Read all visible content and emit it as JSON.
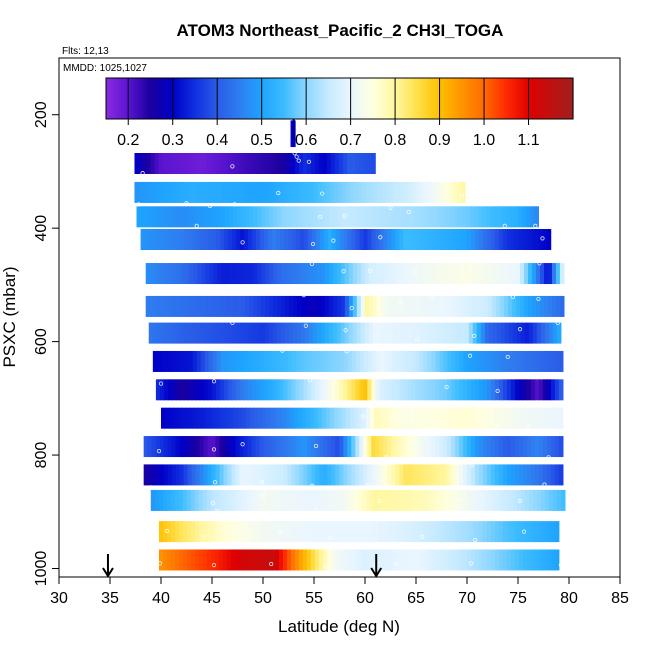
{
  "chart_data": {
    "type": "heatmap",
    "title": "ATOM3 Northeast_Pacific_2 CH3I_TOGA",
    "flights_label": "Flts: 12,13",
    "dates_label": "MMDD: 1025,1027",
    "xlabel": "Latitude (deg N)",
    "ylabel": "PSXC (mbar)",
    "xlim": [
      30,
      85
    ],
    "ylim": [
      1000,
      100
    ],
    "y_reversed": true,
    "x_ticks": [
      "30",
      "35",
      "40",
      "45",
      "50",
      "55",
      "60",
      "65",
      "70",
      "75",
      "80",
      "85"
    ],
    "y_ticks": [
      "200",
      "400",
      "600",
      "800",
      "1000"
    ],
    "colorbar": {
      "min": 0.15,
      "max": 1.2,
      "tick_labels": [
        "0.2",
        "0.3",
        "0.4",
        "0.5",
        "0.6",
        "0.7",
        "0.8",
        "0.9",
        "1.0",
        "1.1"
      ],
      "colors": [
        "#8a2be2",
        "#5a14d0",
        "#1a00a0",
        "#0000c8",
        "#1030e0",
        "#2a5ce8",
        "#2f7df0",
        "#1ea4ff",
        "#3cbcff",
        "#8dd6ff",
        "#c6eaff",
        "#eaf6ff",
        "#ffffe0",
        "#fff7a0",
        "#ffe04a",
        "#ffc000",
        "#ff9400",
        "#ff6a00",
        "#ff2a00",
        "#e00000",
        "#c01010",
        "#a02020"
      ]
    },
    "markers": [
      {
        "name": "flight-start-arrow",
        "lat": 34.8,
        "p": 985
      },
      {
        "name": "flight-end-arrow",
        "lat": 61.1,
        "p": 985
      },
      {
        "name": "profile-top-arrow",
        "lat": 53.0,
        "p": 225
      }
    ],
    "rows": [
      {
        "p": 233,
        "values": [
          [
            52.7,
            53.2,
            0.3
          ]
        ]
      },
      {
        "p": 286,
        "values": [
          [
            37.4,
            0.3
          ],
          [
            40,
            0.2
          ],
          [
            44,
            0.18
          ],
          [
            48,
            0.22
          ],
          [
            52,
            0.25
          ],
          [
            54,
            0.35
          ],
          [
            56,
            0.3
          ],
          [
            58.5,
            0.4
          ],
          [
            61,
            0.38
          ]
        ]
      },
      {
        "p": 337,
        "values": [
          [
            37.4,
            0.48
          ],
          [
            43,
            0.52
          ],
          [
            50,
            0.5
          ],
          [
            55,
            0.55
          ],
          [
            60,
            0.62
          ],
          [
            64,
            0.66
          ],
          [
            67,
            0.72
          ],
          [
            69.8,
            0.8
          ]
        ]
      },
      {
        "p": 380,
        "values": [
          [
            37.6,
            0.5
          ],
          [
            42,
            0.47
          ],
          [
            46,
            0.5
          ],
          [
            52,
            0.6
          ],
          [
            58,
            0.65
          ],
          [
            65,
            0.62
          ],
          [
            70,
            0.58
          ],
          [
            75,
            0.52
          ],
          [
            77,
            0.46
          ]
        ]
      },
      {
        "p": 420,
        "values": [
          [
            38,
            0.48
          ],
          [
            42,
            0.45
          ],
          [
            45.5,
            0.4
          ],
          [
            48,
            0.32
          ],
          [
            51,
            0.45
          ],
          [
            54,
            0.38
          ],
          [
            56.5,
            0.52
          ],
          [
            60,
            0.36
          ],
          [
            64,
            0.55
          ],
          [
            70,
            0.5
          ],
          [
            74,
            0.35
          ],
          [
            78.2,
            0.3
          ]
        ]
      },
      {
        "p": 480,
        "values": [
          [
            38.5,
            0.47
          ],
          [
            42,
            0.43
          ],
          [
            46,
            0.33
          ],
          [
            49,
            0.34
          ],
          [
            52,
            0.43
          ],
          [
            56,
            0.48
          ],
          [
            60.5,
            0.67
          ],
          [
            66,
            0.72
          ],
          [
            70,
            0.74
          ],
          [
            75,
            0.7
          ],
          [
            78,
            0.3
          ],
          [
            79.5,
            0.72
          ]
        ]
      },
      {
        "p": 538,
        "values": [
          [
            38.5,
            0.45
          ],
          [
            44,
            0.42
          ],
          [
            48,
            0.4
          ],
          [
            52,
            0.33
          ],
          [
            55,
            0.28
          ],
          [
            58,
            0.36
          ],
          [
            60.2,
            0.8
          ],
          [
            62,
            0.72
          ],
          [
            68,
            0.7
          ],
          [
            72,
            0.66
          ],
          [
            76,
            0.5
          ],
          [
            79.5,
            0.42
          ]
        ]
      },
      {
        "p": 585,
        "values": [
          [
            38.8,
            0.44
          ],
          [
            43,
            0.4
          ],
          [
            47,
            0.38
          ],
          [
            50,
            0.36
          ],
          [
            54,
            0.44
          ],
          [
            58,
            0.58
          ],
          [
            61,
            0.7
          ],
          [
            66,
            0.68
          ],
          [
            70,
            0.65
          ],
          [
            72,
            0.42
          ],
          [
            76,
            0.33
          ],
          [
            79.2,
            0.52
          ]
        ]
      },
      {
        "p": 635,
        "values": [
          [
            39.2,
            0.3
          ],
          [
            43,
            0.32
          ],
          [
            46,
            0.48
          ],
          [
            50,
            0.52
          ],
          [
            54,
            0.57
          ],
          [
            58,
            0.6
          ],
          [
            61.5,
            0.7
          ],
          [
            65,
            0.65
          ],
          [
            70,
            0.5
          ],
          [
            74,
            0.45
          ],
          [
            79.4,
            0.4
          ]
        ]
      },
      {
        "p": 685,
        "values": [
          [
            39.5,
            0.35
          ],
          [
            42,
            0.25
          ],
          [
            45,
            0.32
          ],
          [
            48,
            0.45
          ],
          [
            51,
            0.52
          ],
          [
            54,
            0.62
          ],
          [
            57,
            0.75
          ],
          [
            60,
            0.9
          ],
          [
            61.3,
            0.68
          ],
          [
            65,
            0.62
          ],
          [
            68,
            0.58
          ],
          [
            72,
            0.48
          ],
          [
            75,
            0.3
          ],
          [
            77,
            0.2
          ],
          [
            79.4,
            0.42
          ]
        ]
      },
      {
        "p": 735,
        "values": [
          [
            40,
            0.3
          ],
          [
            44,
            0.33
          ],
          [
            48,
            0.38
          ],
          [
            52,
            0.46
          ],
          [
            56,
            0.57
          ],
          [
            60,
            0.68
          ],
          [
            61,
            0.78
          ],
          [
            64,
            0.74
          ],
          [
            70,
            0.76
          ],
          [
            75,
            0.72
          ],
          [
            79.4,
            0.7
          ]
        ]
      },
      {
        "p": 785,
        "values": [
          [
            38.3,
            0.4
          ],
          [
            42,
            0.3
          ],
          [
            45,
            0.2
          ],
          [
            47,
            0.3
          ],
          [
            50,
            0.4
          ],
          [
            54,
            0.48
          ],
          [
            57.5,
            0.38
          ],
          [
            60.8,
            0.86
          ],
          [
            64,
            0.76
          ],
          [
            68,
            0.66
          ],
          [
            71,
            0.48
          ],
          [
            74,
            0.4
          ],
          [
            77,
            0.46
          ],
          [
            79.4,
            0.38
          ]
        ]
      },
      {
        "p": 835,
        "values": [
          [
            38.3,
            0.25
          ],
          [
            42,
            0.35
          ],
          [
            45,
            0.52
          ],
          [
            48,
            0.7
          ],
          [
            52,
            0.66
          ],
          [
            56,
            0.52
          ],
          [
            60.8,
            0.7
          ],
          [
            64,
            0.84
          ],
          [
            68,
            0.8
          ],
          [
            71,
            0.62
          ],
          [
            74,
            0.5
          ],
          [
            77,
            0.44
          ],
          [
            79.4,
            0.36
          ]
        ]
      },
      {
        "p": 880,
        "values": [
          [
            39,
            0.48
          ],
          [
            42,
            0.55
          ],
          [
            45,
            0.64
          ],
          [
            50,
            0.72
          ],
          [
            55,
            0.7
          ],
          [
            58,
            0.72
          ],
          [
            61,
            0.8
          ],
          [
            66,
            0.78
          ],
          [
            70,
            0.72
          ],
          [
            75,
            0.64
          ],
          [
            79.6,
            0.55
          ]
        ]
      },
      {
        "p": 935,
        "values": [
          [
            39.8,
            0.9
          ],
          [
            42,
            0.84
          ],
          [
            46,
            0.76
          ],
          [
            50,
            0.72
          ],
          [
            55,
            0.7
          ],
          [
            60,
            0.7
          ],
          [
            64,
            0.68
          ],
          [
            70,
            0.62
          ],
          [
            74,
            0.56
          ],
          [
            79,
            0.5
          ]
        ]
      },
      {
        "p": 985,
        "values": [
          [
            39.8,
            0.95
          ],
          [
            42,
            1.0
          ],
          [
            45,
            1.05
          ],
          [
            48,
            1.12
          ],
          [
            51,
            1.14
          ],
          [
            53,
            0.98
          ],
          [
            55,
            0.85
          ],
          [
            57,
            0.72
          ],
          [
            60,
            0.68
          ],
          [
            65,
            0.7
          ],
          [
            70,
            0.64
          ],
          [
            75,
            0.56
          ],
          [
            79,
            0.5
          ]
        ]
      }
    ],
    "samples": [
      [
        53.0,
        262
      ],
      [
        53.1,
        268
      ],
      [
        53.3,
        274
      ],
      [
        53.5,
        281
      ],
      [
        38.2,
        303
      ],
      [
        47.0,
        291
      ],
      [
        54.5,
        283
      ],
      [
        37.8,
        358
      ],
      [
        42.5,
        356
      ],
      [
        44.8,
        361
      ],
      [
        47.2,
        358
      ],
      [
        51.5,
        338
      ],
      [
        55.8,
        339
      ],
      [
        62.5,
        364
      ],
      [
        69.5,
        343
      ],
      [
        43.5,
        396
      ],
      [
        55.6,
        380
      ],
      [
        58.0,
        378
      ],
      [
        64.3,
        371
      ],
      [
        73.7,
        396
      ],
      [
        76.7,
        396
      ],
      [
        48.0,
        425
      ],
      [
        54.9,
        428
      ],
      [
        56.9,
        422
      ],
      [
        61.5,
        416
      ],
      [
        77.4,
        418
      ],
      [
        54.8,
        463
      ],
      [
        57.9,
        476
      ],
      [
        60.5,
        475
      ],
      [
        64.9,
        477
      ],
      [
        70.4,
        474
      ],
      [
        77.1,
        462
      ],
      [
        54.0,
        518
      ],
      [
        58.7,
        541
      ],
      [
        63.5,
        530
      ],
      [
        66.5,
        520
      ],
      [
        74.5,
        521
      ],
      [
        77.0,
        525
      ],
      [
        47.0,
        567
      ],
      [
        54.2,
        572
      ],
      [
        58.1,
        580
      ],
      [
        65.1,
        596
      ],
      [
        70.7,
        590
      ],
      [
        75.2,
        578
      ],
      [
        78.9,
        567
      ],
      [
        51.9,
        616
      ],
      [
        57.5,
        612
      ],
      [
        58.2,
        617
      ],
      [
        70.3,
        625
      ],
      [
        74.0,
        627
      ],
      [
        39.3,
        667
      ],
      [
        40.0,
        674
      ],
      [
        45.2,
        670
      ],
      [
        54.6,
        668
      ],
      [
        68.0,
        680
      ],
      [
        73.0,
        687
      ],
      [
        59.8,
        732
      ],
      [
        62.6,
        736
      ],
      [
        73.1,
        747
      ],
      [
        76.0,
        751
      ],
      [
        39.8,
        793
      ],
      [
        45.2,
        790
      ],
      [
        48.0,
        781
      ],
      [
        55.2,
        784
      ],
      [
        57.3,
        813
      ],
      [
        62.1,
        804
      ],
      [
        70.5,
        818
      ],
      [
        78.0,
        804
      ],
      [
        39.0,
        857
      ],
      [
        45.3,
        848
      ],
      [
        49.9,
        848
      ],
      [
        54.8,
        854
      ],
      [
        60.3,
        853
      ],
      [
        70.5,
        860
      ],
      [
        77.6,
        852
      ],
      [
        45.1,
        885
      ],
      [
        45.5,
        899
      ],
      [
        50.0,
        872
      ],
      [
        55.2,
        897
      ],
      [
        56.0,
        903
      ],
      [
        61.4,
        881
      ],
      [
        69.2,
        879
      ],
      [
        75.2,
        881
      ],
      [
        40.6,
        934
      ],
      [
        44.1,
        945
      ],
      [
        48.6,
        940
      ],
      [
        51.7,
        935
      ],
      [
        56.6,
        946
      ],
      [
        65.6,
        944
      ],
      [
        70.8,
        950
      ],
      [
        75.6,
        935
      ],
      [
        79.6,
        941
      ],
      [
        39.9,
        991
      ],
      [
        45.2,
        994
      ],
      [
        50.8,
        992
      ],
      [
        56.1,
        996
      ],
      [
        61.0,
        994
      ],
      [
        63.1,
        992
      ],
      [
        70.4,
        991
      ],
      [
        79.2,
        994
      ]
    ]
  }
}
